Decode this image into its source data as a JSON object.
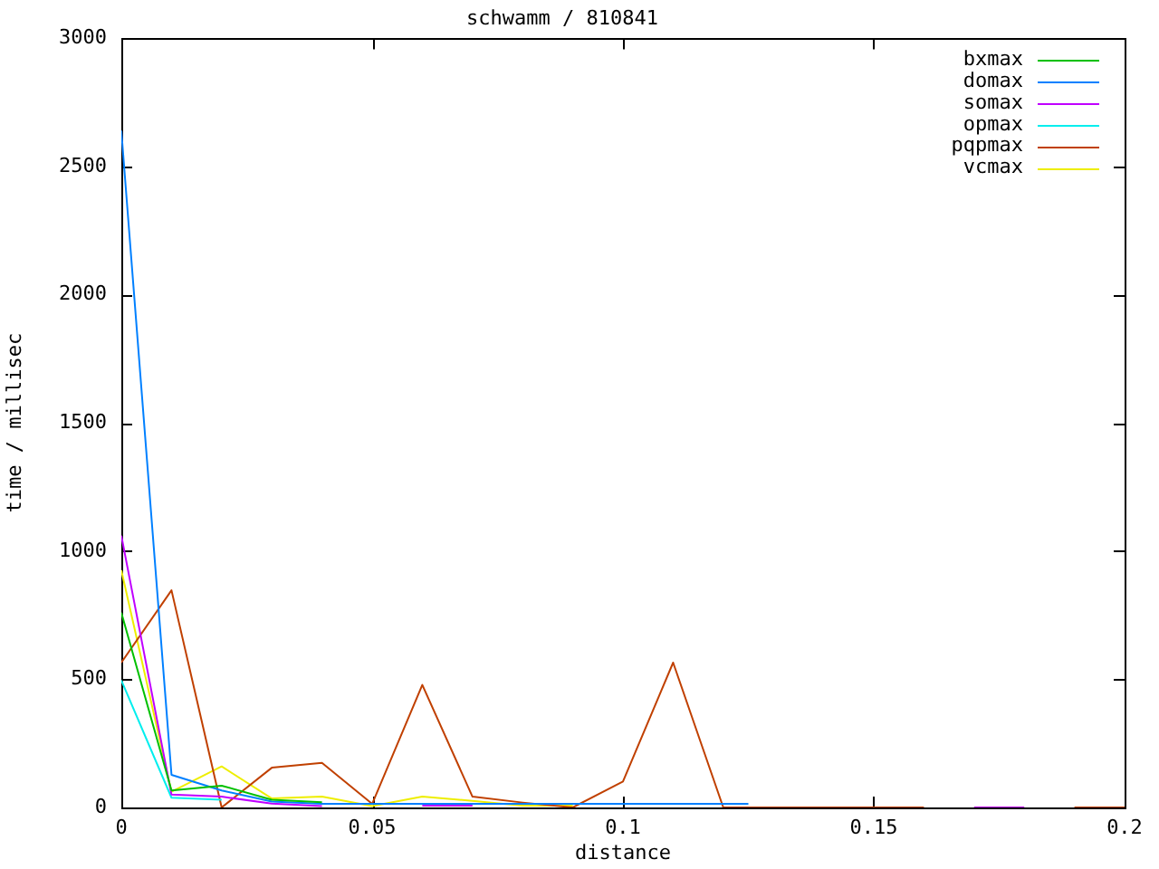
{
  "chart_data": {
    "type": "line",
    "title": "schwamm / 810841",
    "xlabel": "distance",
    "ylabel": "time / millisec",
    "x": [
      0,
      0.01,
      0.02,
      0.03,
      0.04,
      0.05,
      0.06,
      0.07,
      0.08,
      0.09,
      0.1,
      0.11,
      0.12,
      0.13,
      0.14,
      0.15,
      0.16,
      0.17,
      0.18,
      0.19,
      0.2
    ],
    "series": [
      {
        "name": "bxmax",
        "color": "#00c000",
        "values": [
          760,
          66,
          85,
          30,
          20,
          null,
          null,
          null,
          null,
          null,
          null,
          null,
          null,
          null,
          null,
          null,
          null,
          null,
          null,
          null,
          null
        ]
      },
      {
        "name": "domax",
        "color": "#0080ff",
        "x": [
          0,
          0.01,
          0.02,
          0.03,
          0.04,
          0.05,
          0.06,
          0.07,
          0.08,
          0.09,
          0.1,
          0.11,
          0.12,
          0.125
        ],
        "values": [
          2640,
          127,
          66,
          23,
          14,
          14,
          14,
          14,
          14,
          14,
          14,
          14,
          14,
          14
        ]
      },
      {
        "name": "somax",
        "color": "#c000ff",
        "values": [
          1060,
          50,
          42,
          15,
          5,
          null,
          7,
          7,
          null,
          null,
          null,
          null,
          null,
          null,
          null,
          null,
          null,
          0,
          0,
          null,
          null
        ]
      },
      {
        "name": "opmax",
        "color": "#00eeee",
        "values": [
          496,
          38,
          30,
          null,
          null,
          null,
          null,
          null,
          null,
          null,
          null,
          null,
          null,
          null,
          null,
          null,
          null,
          null,
          null,
          null,
          null
        ]
      },
      {
        "name": "pqpmax",
        "color": "#c04000",
        "values": [
          565,
          847,
          0,
          155,
          174,
          14,
          478,
          42,
          19,
          0,
          101,
          565,
          0,
          0,
          0,
          0,
          0,
          null,
          null,
          0,
          0
        ]
      },
      {
        "name": "vcmax",
        "color": "#eeee00",
        "values": [
          925,
          61,
          160,
          35,
          42,
          5,
          42,
          26,
          7,
          7,
          null,
          null,
          null,
          null,
          null,
          null,
          null,
          null,
          null,
          null,
          null
        ]
      }
    ],
    "xlim": [
      0,
      0.2
    ],
    "xticks": [
      0,
      0.05,
      0.1,
      0.15,
      0.2
    ],
    "ylim": [
      0,
      3000
    ],
    "yticks": [
      0,
      500,
      1000,
      1500,
      2000,
      2500,
      3000
    ],
    "legend": "top right"
  }
}
